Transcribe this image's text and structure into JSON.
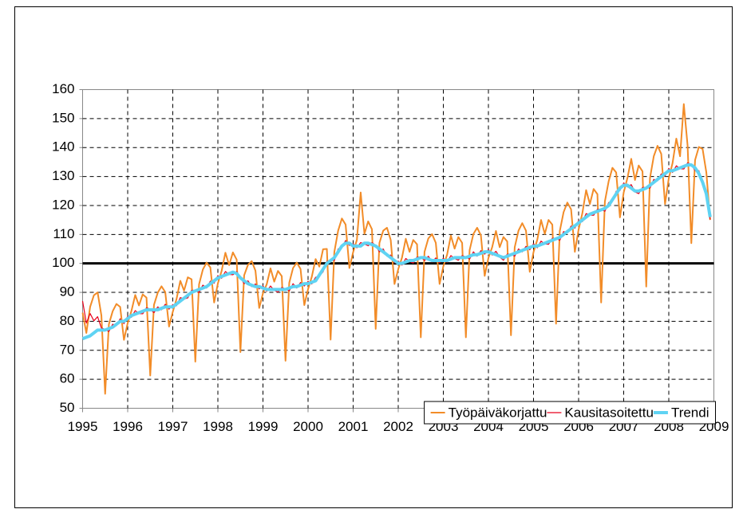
{
  "chart_data": {
    "type": "line",
    "x": [
      1995,
      1995.083,
      1995.167,
      1995.25,
      1995.333,
      1995.417,
      1995.5,
      1995.583,
      1995.667,
      1995.75,
      1995.833,
      1995.917,
      1996,
      1996.083,
      1996.167,
      1996.25,
      1996.333,
      1996.417,
      1996.5,
      1996.583,
      1996.667,
      1996.75,
      1996.833,
      1996.917,
      1997,
      1997.083,
      1997.167,
      1997.25,
      1997.333,
      1997.417,
      1997.5,
      1997.583,
      1997.667,
      1997.75,
      1997.833,
      1997.917,
      1998,
      1998.083,
      1998.167,
      1998.25,
      1998.333,
      1998.417,
      1998.5,
      1998.583,
      1998.667,
      1998.75,
      1998.833,
      1998.917,
      1999,
      1999.083,
      1999.167,
      1999.25,
      1999.333,
      1999.417,
      1999.5,
      1999.583,
      1999.667,
      1999.75,
      1999.833,
      1999.917,
      2000,
      2000.083,
      2000.167,
      2000.25,
      2000.333,
      2000.417,
      2000.5,
      2000.583,
      2000.667,
      2000.75,
      2000.833,
      2000.917,
      2001,
      2001.083,
      2001.167,
      2001.25,
      2001.333,
      2001.417,
      2001.5,
      2001.583,
      2001.667,
      2001.75,
      2001.833,
      2001.917,
      2002,
      2002.083,
      2002.167,
      2002.25,
      2002.333,
      2002.417,
      2002.5,
      2002.583,
      2002.667,
      2002.75,
      2002.833,
      2002.917,
      2003,
      2003.083,
      2003.167,
      2003.25,
      2003.333,
      2003.417,
      2003.5,
      2003.583,
      2003.667,
      2003.75,
      2003.833,
      2003.917,
      2004,
      2004.083,
      2004.167,
      2004.25,
      2004.333,
      2004.417,
      2004.5,
      2004.583,
      2004.667,
      2004.75,
      2004.833,
      2004.917,
      2005,
      2005.083,
      2005.167,
      2005.25,
      2005.333,
      2005.417,
      2005.5,
      2005.583,
      2005.667,
      2005.75,
      2005.833,
      2005.917,
      2006,
      2006.083,
      2006.167,
      2006.25,
      2006.333,
      2006.417,
      2006.5,
      2006.583,
      2006.667,
      2006.75,
      2006.833,
      2006.917,
      2007,
      2007.083,
      2007.167,
      2007.25,
      2007.333,
      2007.417,
      2007.5,
      2007.583,
      2007.667,
      2007.75,
      2007.833,
      2007.917,
      2008,
      2008.083,
      2008.167,
      2008.25,
      2008.333,
      2008.417,
      2008.5,
      2008.583,
      2008.667,
      2008.75,
      2008.833,
      2008.917
    ],
    "series": [
      {
        "name": "Työpäiväkorjattu",
        "color": "#f28c28",
        "width": 2,
        "values": [
          83,
          76,
          85,
          89,
          90,
          82,
          55,
          79,
          83.5,
          86,
          85,
          73.6,
          79.4,
          83.6,
          89.1,
          85.5,
          89.3,
          88.2,
          61.3,
          85.7,
          89.9,
          92.1,
          90.1,
          78.2,
          83.3,
          87.7,
          94,
          90.6,
          95.2,
          94.5,
          66.1,
          92.8,
          97.9,
          100.3,
          98.6,
          86.5,
          93.1,
          97.4,
          103.7,
          99.4,
          103.8,
          101.3,
          69.4,
          95.9,
          99.5,
          100.8,
          97.5,
          84.6,
          89.7,
          92.8,
          98.3,
          93.7,
          97.4,
          95.6,
          66.4,
          93.3,
          98.4,
          100.3,
          98.1,
          85.6,
          91.1,
          95.4,
          101.5,
          98.9,
          104.9,
          105,
          73.7,
          104,
          111.3,
          115.5,
          113.4,
          98.4,
          103.9,
          108.1,
          124.5,
          110.2,
          114.5,
          111.8,
          77.4,
          107.1,
          111.3,
          112.3,
          108.1,
          92.9,
          98,
          102,
          108.5,
          104,
          108.1,
          106.6,
          74.5,
          104,
          108.6,
          110.1,
          107.1,
          92.9,
          99,
          103,
          109.6,
          105.1,
          109.1,
          107.1,
          74.5,
          104.6,
          110.2,
          112.3,
          109.7,
          95.7,
          101.9,
          105.6,
          111.2,
          105.6,
          109.1,
          107.6,
          75.2,
          105.6,
          111.3,
          113.9,
          111.3,
          97.1,
          103.9,
          108.1,
          115,
          110.2,
          115,
          113.4,
          79.2,
          111.2,
          117.7,
          121,
          118.7,
          104,
          111.7,
          117.3,
          125.3,
          120.5,
          125.7,
          123.9,
          86.5,
          121.4,
          128.4,
          133,
          131.4,
          115.9,
          124.5,
          129.5,
          136.1,
          128.8,
          133.8,
          131.8,
          92,
          129.5,
          137,
          140.6,
          137.8,
          120.5,
          129.4,
          134.6,
          143.1,
          137,
          155,
          140.7,
          107,
          135.7,
          140.2,
          139.5,
          131.4,
          115
        ]
      },
      {
        "name": "Kausitasoitettu",
        "color": "#e8001c",
        "width": 1.2,
        "values": [
          87,
          79.4,
          82.7,
          80.2,
          81.6,
          77.7,
          77.2,
          76.5,
          79,
          78.5,
          80.9,
          79.2,
          81.8,
          81.4,
          83.7,
          82.7,
          82.6,
          84.7,
          84.2,
          83,
          85,
          84,
          85.9,
          84.2,
          85.8,
          85.4,
          88.2,
          87.7,
          88.1,
          90.7,
          90.7,
          90,
          92.5,
          91.5,
          93.9,
          93.2,
          95.8,
          94.9,
          97.2,
          96.2,
          96.1,
          97.2,
          95.2,
          93,
          94,
          92,
          92.9,
          91.2,
          92.3,
          90.4,
          92.2,
          90.7,
          90.1,
          91.7,
          91.2,
          90.5,
          93,
          91.5,
          93.4,
          92.2,
          93.8,
          92.9,
          95.2,
          95.7,
          97.1,
          100.7,
          101.2,
          101,
          105,
          105.5,
          107.9,
          106.2,
          106.8,
          105.4,
          107.2,
          106.7,
          106.1,
          107.2,
          106.2,
          104,
          105,
          102.5,
          102.9,
          100.2,
          100.8,
          99.4,
          101.7,
          100.7,
          100.1,
          102.2,
          102.2,
          101,
          102.5,
          100.5,
          101.9,
          100.2,
          101.8,
          100.4,
          102.7,
          101.7,
          101.1,
          102.7,
          102.2,
          101.5,
          104,
          102.5,
          104.4,
          103.2,
          104.8,
          102.9,
          104.2,
          102.2,
          101.1,
          103.2,
          103.2,
          102.5,
          105,
          104,
          105.9,
          104.7,
          106.8,
          105.4,
          107.7,
          106.7,
          106.6,
          108.7,
          108.7,
          108,
          111,
          110.5,
          112.9,
          112.2,
          114.8,
          114.4,
          117.2,
          116.7,
          116.6,
          118.7,
          118.7,
          118,
          121,
          121.5,
          124.9,
          125.2,
          127.8,
          126.4,
          127.2,
          124.7,
          124.1,
          126.2,
          126.2,
          126,
          129,
          128.5,
          130.9,
          130.2,
          132.8,
          131.4,
          133.7,
          132.7,
          132.6,
          134.7,
          134.2,
          132,
          132,
          127.5,
          124.9,
          115.2
        ]
      },
      {
        "name": "Trendi",
        "color": "#5fd3f3",
        "width": 4,
        "values": [
          74,
          74.5,
          75,
          76,
          77,
          77,
          77,
          77.5,
          78,
          79,
          80,
          80,
          81,
          82,
          82.5,
          83,
          83.5,
          84,
          84,
          84,
          84,
          84.5,
          85,
          85,
          85,
          86,
          87,
          88,
          89,
          90,
          90.5,
          91,
          91.5,
          92,
          93,
          94,
          95,
          95.5,
          96,
          96.5,
          97,
          96.5,
          95,
          94,
          93,
          92.5,
          92,
          92,
          91.5,
          91,
          91,
          91,
          91,
          91,
          91,
          91.5,
          92,
          92,
          92.5,
          93,
          93,
          93.5,
          94,
          96,
          98,
          100,
          101,
          102,
          104,
          106,
          107,
          107,
          106,
          106,
          106,
          107,
          107,
          106.5,
          106,
          105,
          104,
          103,
          102,
          101,
          100,
          100,
          100.5,
          101,
          101,
          101.5,
          102,
          102,
          101.5,
          101,
          101,
          101,
          101,
          101,
          101.5,
          102,
          102,
          102,
          102,
          102.5,
          103,
          103,
          103.5,
          104,
          104,
          103.5,
          103,
          102.5,
          102,
          102.5,
          103,
          103.5,
          104,
          104.5,
          105,
          105.5,
          106,
          106,
          106.5,
          107,
          107.5,
          108,
          108.5,
          109,
          110,
          111,
          112,
          113,
          114,
          115,
          116,
          117,
          117.5,
          118,
          118.5,
          119,
          120,
          122,
          124,
          126,
          127,
          127,
          126,
          125,
          125,
          125.5,
          126,
          127,
          128,
          129,
          130,
          131,
          132,
          132,
          132.5,
          133,
          133.5,
          134,
          134,
          133,
          131,
          128,
          124,
          116
        ]
      }
    ],
    "reference_line": 100,
    "xlim": [
      1995,
      2009
    ],
    "xticks": [
      1995,
      1996,
      1997,
      1998,
      1999,
      2000,
      2001,
      2002,
      2003,
      2004,
      2005,
      2006,
      2007,
      2008,
      2009
    ],
    "ylim": [
      50,
      160
    ],
    "yticks": [
      50,
      60,
      70,
      80,
      90,
      100,
      110,
      120,
      130,
      140,
      150,
      160
    ],
    "grid": true,
    "legend": "bottom-right"
  }
}
